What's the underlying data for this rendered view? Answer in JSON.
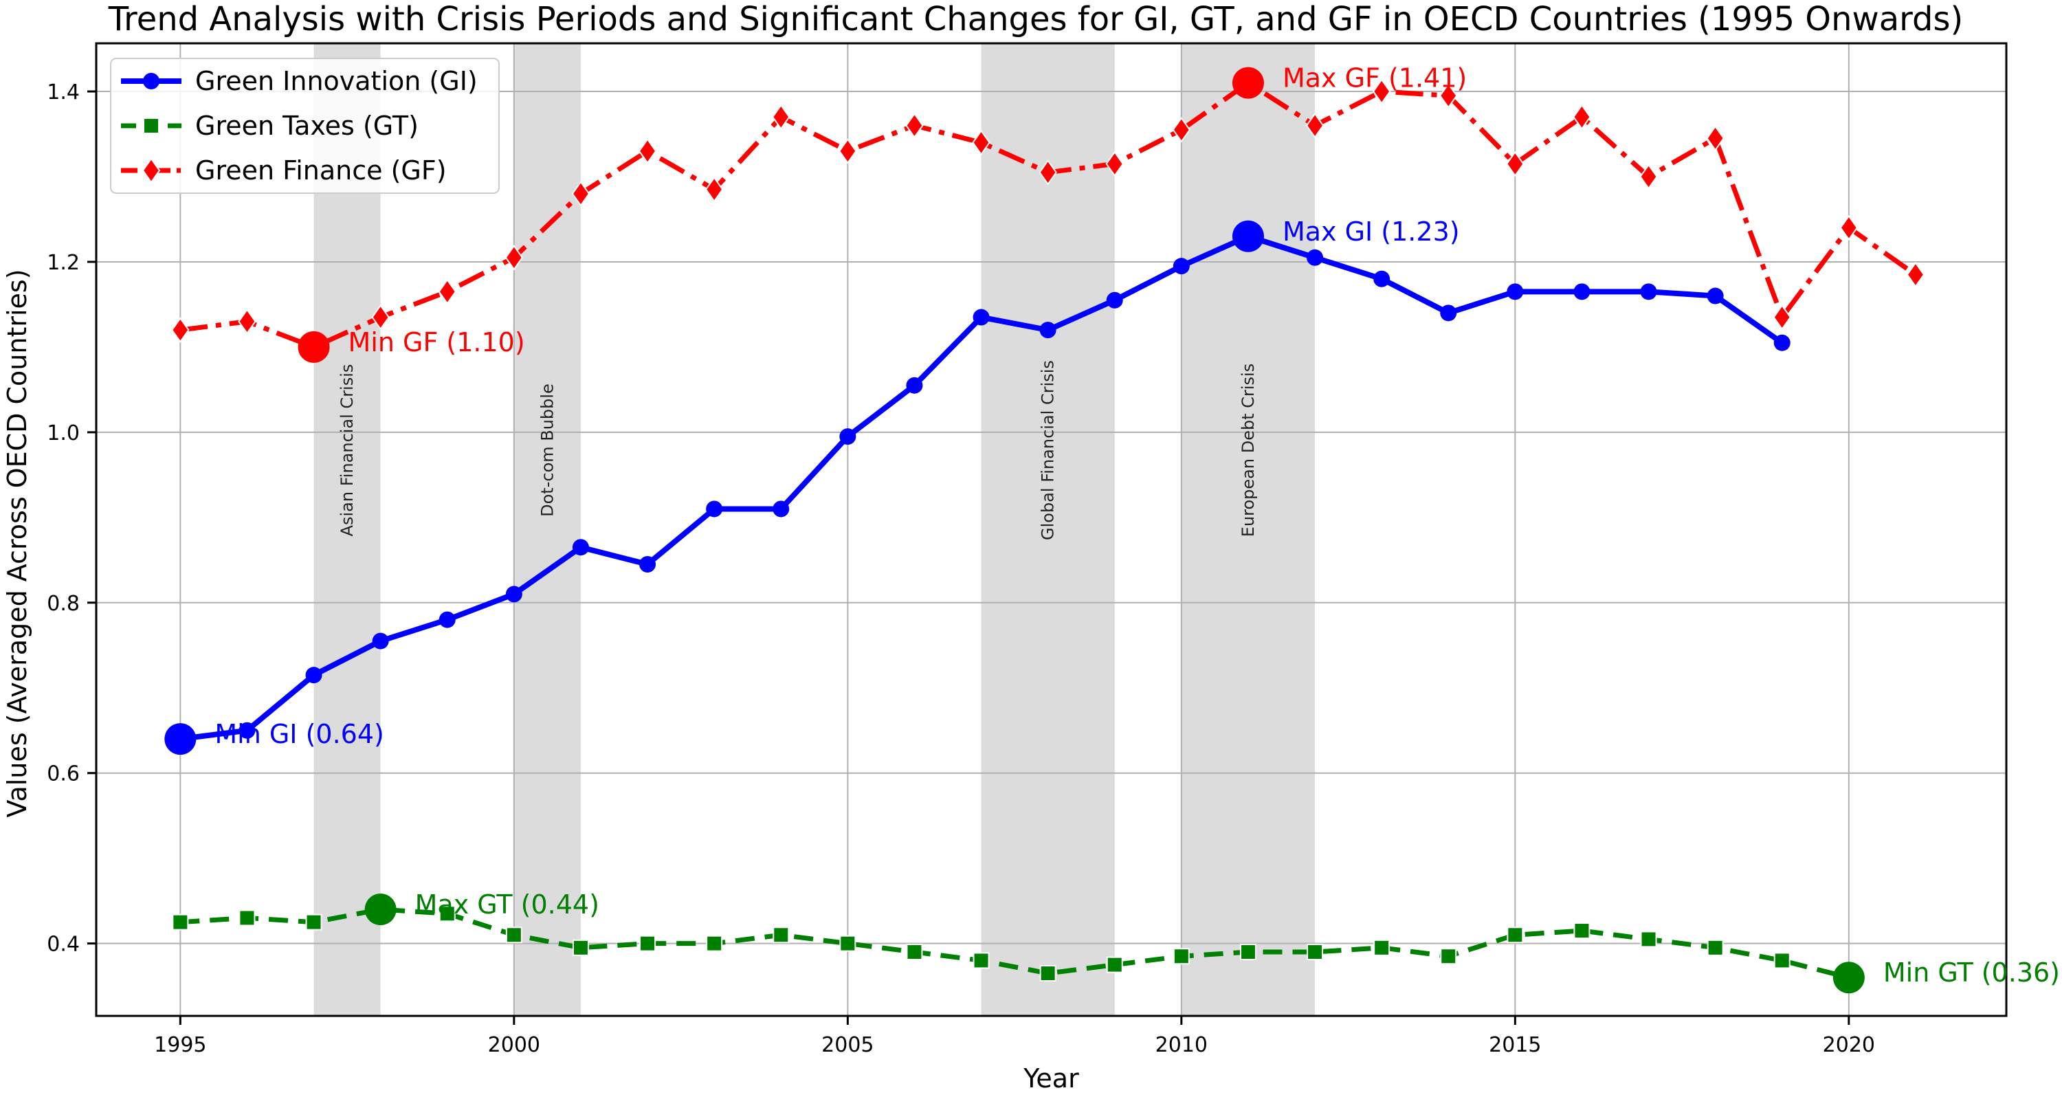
{
  "title": "Trend Analysis with Crisis Periods and Significant Changes for GI, GT, and GF in OECD Countries (1995 Onwards)",
  "xlabel": "Year",
  "ylabel": "Values (Averaged Across OECD Countries)",
  "colors": {
    "gi": "#0000ff",
    "gt": "#008000",
    "gf": "#ff0000",
    "band_fill": "#dcdcdc",
    "grid": "#b0b0b0",
    "spine": "#000000",
    "band_label": "#222222",
    "legend_border": "#cccccc"
  },
  "chart_data": {
    "type": "line",
    "xlabel": "Year",
    "ylabel": "Values (Averaged Across OECD Countries)",
    "xlim": [
      1993.74,
      2022.36
    ],
    "ylim": [
      0.315,
      1.4565
    ],
    "grid": true,
    "legend_position": "upper left",
    "xticks": [
      1995,
      2000,
      2005,
      2010,
      2015,
      2020
    ],
    "xtick_labels": [
      "1995",
      "2000",
      "2005",
      "2010",
      "2015",
      "2020"
    ],
    "yticks": [
      0.4,
      0.6,
      0.8,
      1.0,
      1.2,
      1.4
    ],
    "ytick_labels": [
      "0.4",
      "0.6",
      "0.8",
      "1.0",
      "1.2",
      "1.4"
    ],
    "series": [
      {
        "name": "Green Innovation (GI)",
        "color": "#0000ff",
        "line_style": "solid",
        "marker": "circle",
        "x": [
          1995,
          1996,
          1997,
          1998,
          1999,
          2000,
          2001,
          2002,
          2003,
          2004,
          2005,
          2006,
          2007,
          2008,
          2009,
          2010,
          2011,
          2012,
          2013,
          2014,
          2015,
          2016,
          2017,
          2018,
          2019
        ],
        "values": [
          0.64,
          0.65,
          0.715,
          0.755,
          0.78,
          0.81,
          0.865,
          0.845,
          0.91,
          0.91,
          0.995,
          1.055,
          1.135,
          1.12,
          1.155,
          1.195,
          1.23,
          1.205,
          1.18,
          1.14,
          1.165,
          1.165,
          1.165,
          1.16,
          1.105
        ]
      },
      {
        "name": "Green Taxes (GT)",
        "color": "#008000",
        "line_style": "dashed",
        "marker": "square",
        "x": [
          1995,
          1996,
          1997,
          1998,
          1999,
          2000,
          2001,
          2002,
          2003,
          2004,
          2005,
          2006,
          2007,
          2008,
          2009,
          2010,
          2011,
          2012,
          2013,
          2014,
          2015,
          2016,
          2017,
          2018,
          2019,
          2020
        ],
        "values": [
          0.425,
          0.43,
          0.425,
          0.44,
          0.435,
          0.41,
          0.395,
          0.4,
          0.4,
          0.41,
          0.4,
          0.39,
          0.38,
          0.365,
          0.375,
          0.385,
          0.39,
          0.39,
          0.395,
          0.385,
          0.41,
          0.415,
          0.405,
          0.395,
          0.38,
          0.36
        ]
      },
      {
        "name": "Green Finance (GF)",
        "color": "#ff0000",
        "line_style": "dashdot",
        "marker": "diamond",
        "x": [
          1995,
          1996,
          1997,
          1998,
          1999,
          2000,
          2001,
          2002,
          2003,
          2004,
          2005,
          2006,
          2007,
          2008,
          2009,
          2010,
          2011,
          2012,
          2013,
          2014,
          2015,
          2016,
          2017,
          2018,
          2019,
          2020,
          2021
        ],
        "values": [
          1.12,
          1.13,
          1.1,
          1.135,
          1.165,
          1.205,
          1.28,
          1.33,
          1.285,
          1.37,
          1.33,
          1.36,
          1.34,
          1.305,
          1.315,
          1.355,
          1.41,
          1.36,
          1.4,
          1.395,
          1.315,
          1.37,
          1.3,
          1.345,
          1.135,
          1.24,
          1.185
        ]
      }
    ],
    "bands": [
      {
        "label": "Asian Financial Crisis",
        "from": 1997,
        "to": 1998
      },
      {
        "label": "Dot-com Bubble",
        "from": 2000,
        "to": 2001
      },
      {
        "label": "Global Financial Crisis",
        "from": 2007,
        "to": 2009
      },
      {
        "label": "European Debt Crisis",
        "from": 2010,
        "to": 2012
      }
    ],
    "annotations": [
      {
        "text": "Min GI (0.64)",
        "x": 1995,
        "y": 0.64,
        "color": "#0000ff"
      },
      {
        "text": "Max GI (1.23)",
        "x": 2011,
        "y": 1.23,
        "color": "#0000ff"
      },
      {
        "text": "Max GT (0.44)",
        "x": 1998,
        "y": 0.44,
        "color": "#008000"
      },
      {
        "text": "Min GT (0.36)",
        "x": 2020,
        "y": 0.36,
        "color": "#008000"
      },
      {
        "text": "Min GF (1.10)",
        "x": 1997,
        "y": 1.1,
        "color": "#ff0000"
      },
      {
        "text": "Max GF (1.41)",
        "x": 2011,
        "y": 1.41,
        "color": "#ff0000"
      }
    ]
  }
}
